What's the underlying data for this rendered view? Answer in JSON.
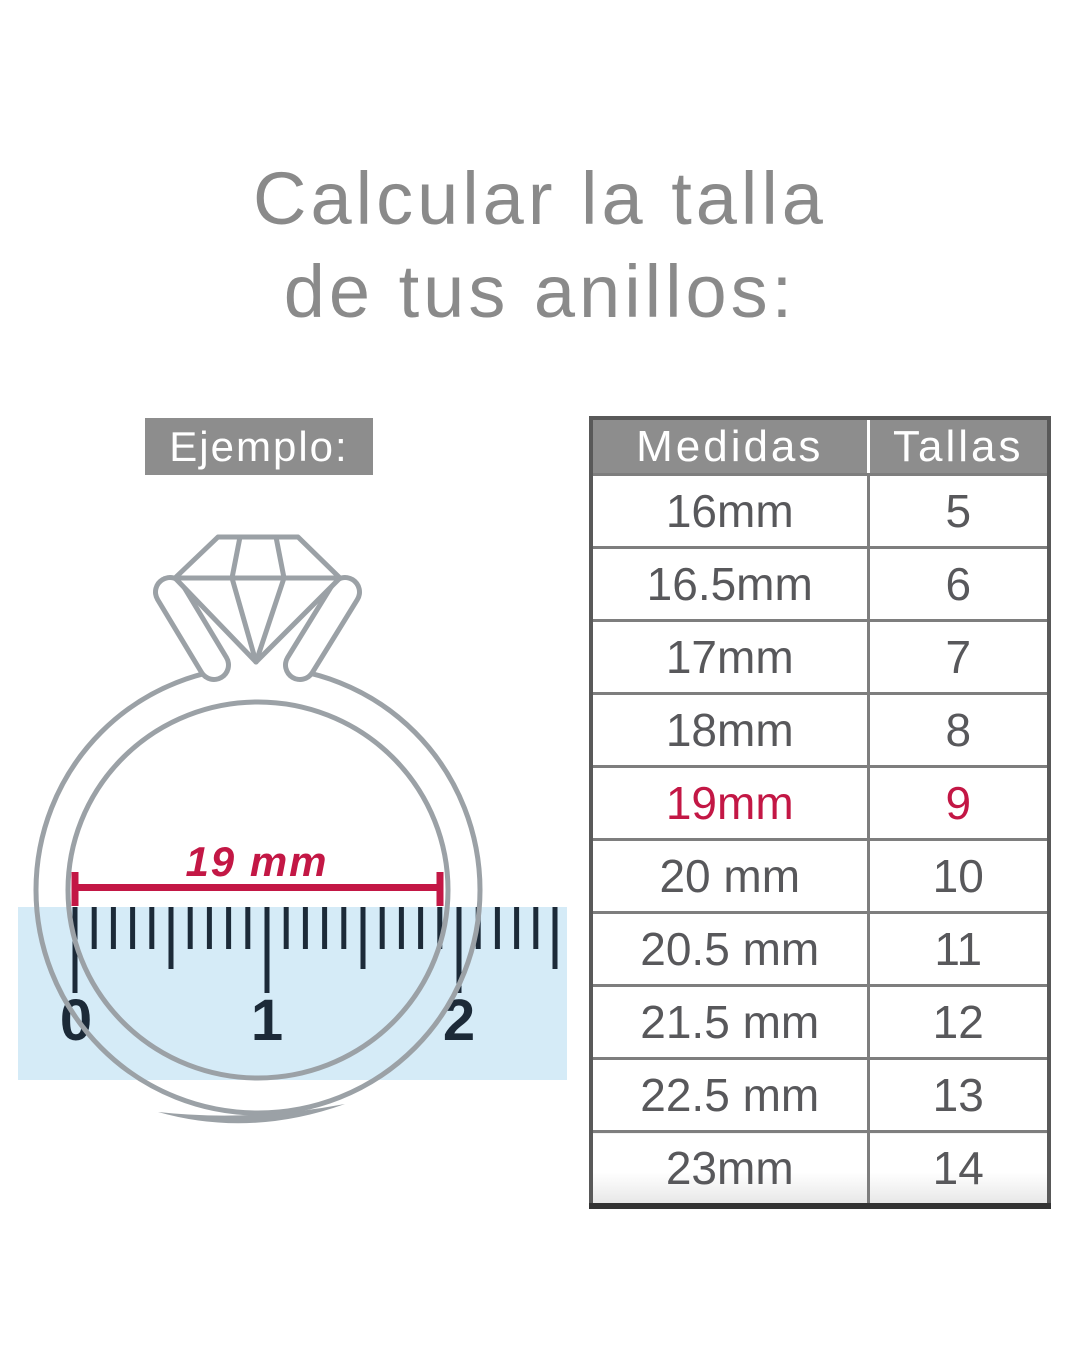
{
  "title": {
    "line1": "Calcular la talla",
    "line2": "de tus anillos:"
  },
  "example": {
    "label": "Ejemplo:",
    "measurement_label": "19 mm",
    "ruler_numbers": [
      "0",
      "1",
      "2"
    ]
  },
  "size_table": {
    "header": {
      "measures": "Medidas",
      "sizes": "Tallas"
    },
    "rows": [
      {
        "measure": "16mm",
        "size": "5",
        "highlighted": false
      },
      {
        "measure": "16.5mm",
        "size": "6",
        "highlighted": false
      },
      {
        "measure": "17mm",
        "size": "7",
        "highlighted": false
      },
      {
        "measure": "18mm",
        "size": "8",
        "highlighted": false
      },
      {
        "measure": "19mm",
        "size": "9",
        "highlighted": true
      },
      {
        "measure": "20 mm",
        "size": "10",
        "highlighted": false
      },
      {
        "measure": "20.5 mm",
        "size": "11",
        "highlighted": false
      },
      {
        "measure": "21.5 mm",
        "size": "12",
        "highlighted": false
      },
      {
        "measure": "22.5 mm",
        "size": "13",
        "highlighted": false
      },
      {
        "measure": "23mm",
        "size": "14",
        "highlighted": false
      }
    ]
  },
  "colors": {
    "accent_red": "#c31745",
    "label_gray": "#8d8d8d",
    "text_gray": "#58585b",
    "ruler_navy": "#1c2a38",
    "ruler_blue": "#d5ebf7",
    "ring_gray": "#9ba1a6"
  }
}
